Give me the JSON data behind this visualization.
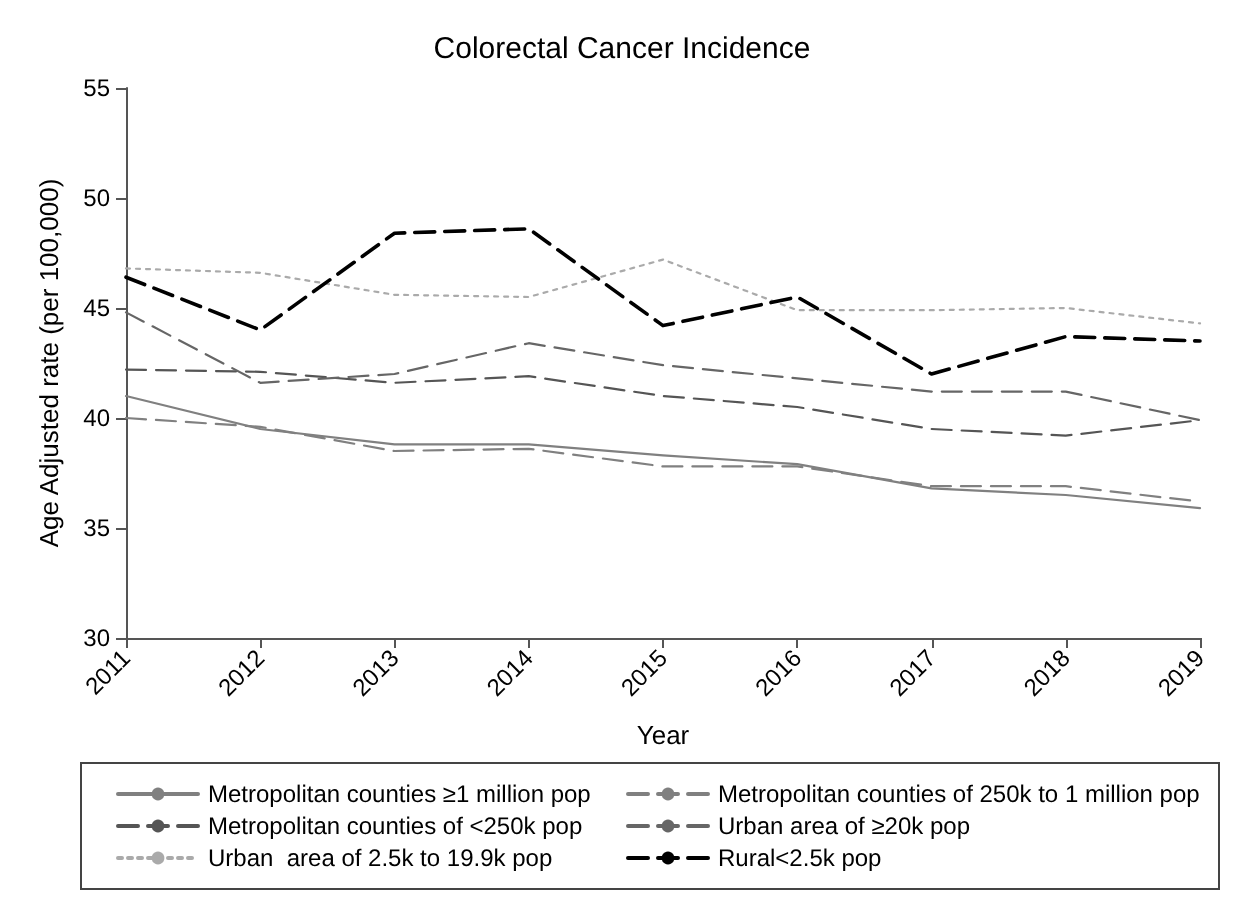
{
  "chart_data": {
    "type": "line",
    "title": "Colorectal Cancer Incidence",
    "xlabel": "Year",
    "ylabel": "Age Adjusted rate (per 100,000)",
    "categories": [
      "2011",
      "2012",
      "2013",
      "2014",
      "2015",
      "2016",
      "2017",
      "2018",
      "2019"
    ],
    "ylim": [
      30,
      55
    ],
    "yticks": [
      30,
      35,
      40,
      45,
      50,
      55
    ],
    "grid": false,
    "legend": "bottom",
    "marker": "none",
    "series": [
      {
        "name": "Metropolitan counties ≥1 million pop",
        "color": "#808080",
        "line_style": "solid",
        "values": [
          41.0,
          39.5,
          38.8,
          38.8,
          38.3,
          37.9,
          36.8,
          36.5,
          35.9
        ]
      },
      {
        "name": "Metropolitan counties of 250k to 1 million pop",
        "color": "#808080",
        "line_style": "dashed",
        "values": [
          40.0,
          39.6,
          38.5,
          38.6,
          37.8,
          37.8,
          36.9,
          36.9,
          36.2
        ]
      },
      {
        "name": "Metropolitan counties of <250k pop",
        "color": "#555555",
        "line_style": "dashed",
        "values": [
          42.2,
          42.1,
          41.6,
          41.9,
          41.0,
          40.5,
          39.5,
          39.2,
          39.9
        ]
      },
      {
        "name": "Urban area of ≥20k pop",
        "color": "#666666",
        "line_style": "dashed",
        "values": [
          44.8,
          41.6,
          42.0,
          43.4,
          42.4,
          41.8,
          41.2,
          41.2,
          39.9
        ]
      },
      {
        "name": "Urban  area of 2.5k to 19.9k pop",
        "color": "#aaaaaa",
        "line_style": "dotted",
        "values": [
          46.8,
          46.6,
          45.6,
          45.5,
          47.2,
          44.9,
          44.9,
          45.0,
          44.3
        ]
      },
      {
        "name": "Rural<2.5k pop",
        "color": "#000000",
        "line_style": "dashed",
        "values": [
          46.4,
          44.0,
          48.4,
          48.6,
          44.2,
          45.5,
          42.0,
          43.7,
          43.5
        ]
      }
    ]
  }
}
